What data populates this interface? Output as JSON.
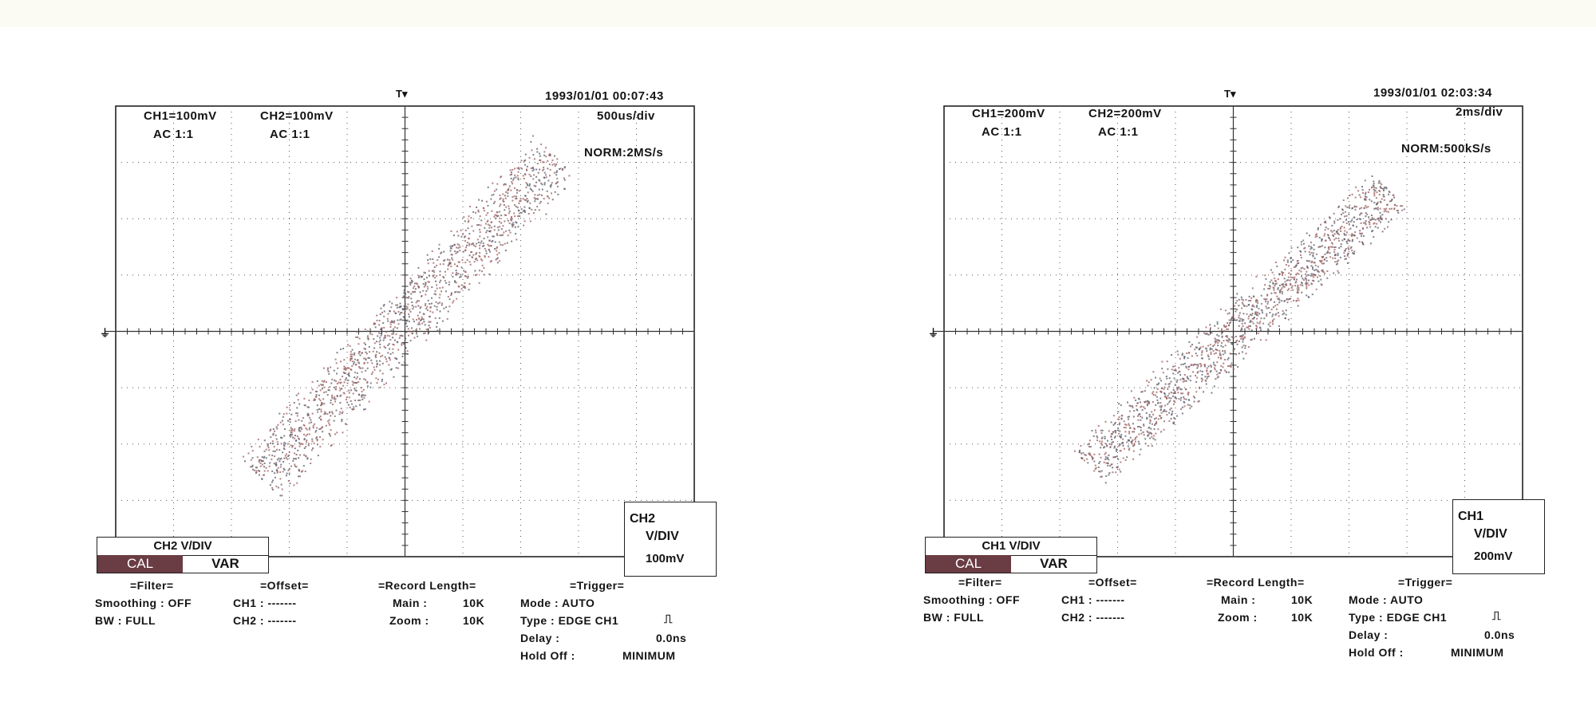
{
  "screens": [
    {
      "timestamp": "1993/01/01  00:07:43",
      "ch1": "CH1=100mV",
      "ch2": "CH2=100mV",
      "ch1_coupling": "AC  1:1",
      "ch2_coupling": "AC  1:1",
      "timebase": "500us/div",
      "sample": "NORM:2MS/s",
      "vdiv_title": "CH2  V/DIV",
      "cal_label": "CAL",
      "var_label": "VAR",
      "chbox": {
        "name": "CH2",
        "label": "V/DIV",
        "value": "100mV"
      },
      "filter": {
        "header": "=Filter=",
        "smoothing": "Smoothing : OFF",
        "bw": "BW : FULL"
      },
      "offset": {
        "header": "=Offset=",
        "ch1": "CH1 : -------",
        "ch2": "CH2 : -------"
      },
      "record": {
        "header": "=Record Length=",
        "main_label": "Main :",
        "main_value": "10K",
        "zoom_label": "Zoom :",
        "zoom_value": "10K"
      },
      "trigger": {
        "header": "=Trigger=",
        "mode": "Mode : AUTO",
        "type": "Type : EDGE CH1",
        "delay_label": "Delay :",
        "delay_value": "0.0ns",
        "holdoff_label": "Hold Off :",
        "holdoff_value": "MINIMUM"
      },
      "trace": {
        "x_start": -2.5,
        "y_start": -2.6,
        "x_end": 2.6,
        "y_end": 3.1,
        "spread": 0.45,
        "seed": 7
      }
    },
    {
      "timestamp": "1993/01/01  02:03:34",
      "ch1": "CH1=200mV",
      "ch2": "CH2=200mV",
      "ch1_coupling": "AC  1:1",
      "ch2_coupling": "AC  1:1",
      "timebase": "2ms/div",
      "sample": "NORM:500kS/s",
      "vdiv_title": "CH1  V/DIV",
      "cal_label": "CAL",
      "var_label": "VAR",
      "chbox": {
        "name": "CH1",
        "label": "V/DIV",
        "value": "200mV"
      },
      "filter": {
        "header": "=Filter=",
        "smoothing": "Smoothing : OFF",
        "bw": "BW : FULL"
      },
      "offset": {
        "header": "=Offset=",
        "ch1": "CH1 : -------",
        "ch2": "CH2 : -------"
      },
      "record": {
        "header": "=Record Length=",
        "main_label": "Main :",
        "main_value": "10K",
        "zoom_label": "Zoom :",
        "zoom_value": "10K"
      },
      "trigger": {
        "header": "=Trigger=",
        "mode": "Mode : AUTO",
        "type": "Type : EDGE CH1",
        "delay_label": "Delay :",
        "delay_value": "0.0ns",
        "holdoff_label": "Hold Off :",
        "holdoff_value": "MINIMUM"
      },
      "trace": {
        "x_start": -2.5,
        "y_start": -2.4,
        "x_end": 2.7,
        "y_end": 2.5,
        "spread": 0.4,
        "seed": 13
      }
    }
  ],
  "colors": {
    "dot_red": "#9a5a5a",
    "dot_gray": "#555a66",
    "grid": "#555555",
    "cal_bg": "#6a3c43"
  },
  "icons": {
    "trigger_marker": "T-down-arrow",
    "ground_marker": "ground-symbol",
    "edge": "rising-edge-icon"
  }
}
